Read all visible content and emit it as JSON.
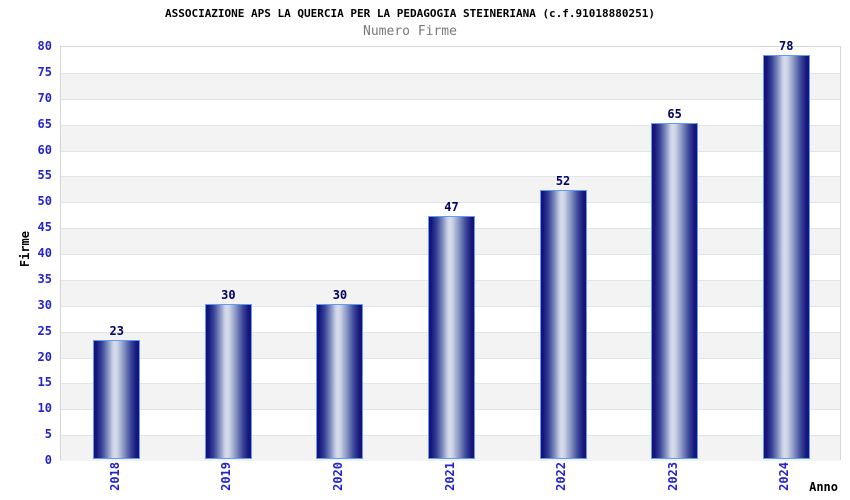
{
  "chart_data": {
    "type": "bar",
    "title": "ASSOCIAZIONE APS LA QUERCIA PER LA PEDAGOGIA STEINERIANA (c.f.91018880251)",
    "subtitle": "Numero Firme",
    "xlabel": "Anno",
    "ylabel": "Firme",
    "categories": [
      "2018",
      "2019",
      "2020",
      "2021",
      "2022",
      "2023",
      "2024"
    ],
    "values": [
      23,
      30,
      30,
      47,
      52,
      65,
      78
    ],
    "ylim": [
      0,
      80
    ],
    "ytick_step": 5,
    "grid": true,
    "legend_position": "none",
    "colors": {
      "bar_dark": "#14147a",
      "bar_mid": "#8a96c4",
      "bar_light": "#ccd3e6",
      "bar_outline": "#5e9cf5",
      "tick_label": "#2323cc",
      "value_label": "#000066",
      "band_gray": "#f3f3f3",
      "band_white": "#ffffff",
      "grid_line": "#e3e3e3",
      "plot_border": "#d6d6d6",
      "title_color": "#000000",
      "subtitle_color": "#7a7a7a"
    }
  }
}
